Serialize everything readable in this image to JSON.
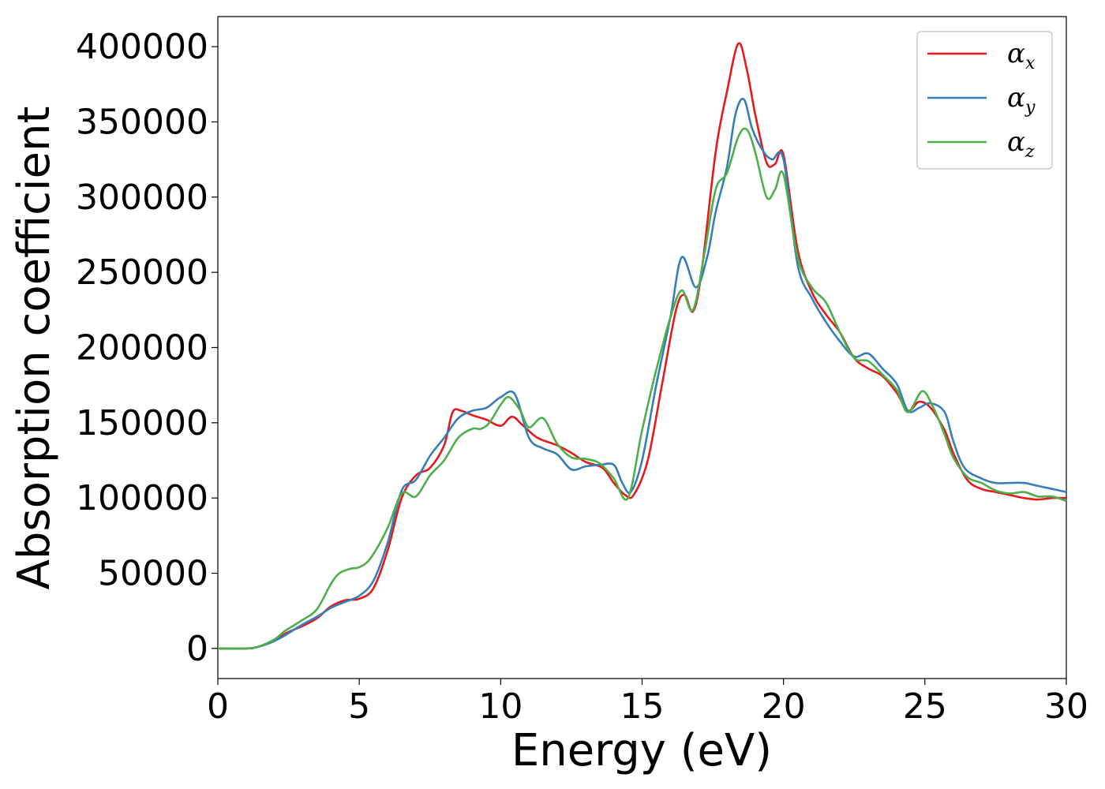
{
  "chart_data": {
    "type": "line",
    "title": "",
    "xlabel": "Energy (eV)",
    "ylabel": "Absorption coefficient",
    "xlim": [
      0,
      30
    ],
    "ylim": [
      -20000,
      420000
    ],
    "xticks": [
      0,
      5,
      10,
      15,
      20,
      25,
      30
    ],
    "yticks": [
      0,
      50000,
      100000,
      150000,
      200000,
      250000,
      300000,
      350000,
      400000
    ],
    "grid": false,
    "legend_position": "top-right",
    "series": [
      {
        "name": "α_x",
        "symbol": "α",
        "subscript": "x",
        "color": "#e41a1c",
        "points": [
          [
            0,
            0
          ],
          [
            1,
            0
          ],
          [
            1.4,
            1000
          ],
          [
            2,
            5000
          ],
          [
            2.4,
            10000
          ],
          [
            3,
            15000
          ],
          [
            3.5,
            20000
          ],
          [
            4,
            28000
          ],
          [
            4.5,
            32000
          ],
          [
            5,
            33000
          ],
          [
            5.5,
            40000
          ],
          [
            6,
            65000
          ],
          [
            6.5,
            100000
          ],
          [
            7,
            115000
          ],
          [
            7.5,
            120000
          ],
          [
            8,
            135000
          ],
          [
            8.3,
            157000
          ],
          [
            8.6,
            158000
          ],
          [
            9,
            155000
          ],
          [
            9.5,
            152000
          ],
          [
            10,
            148000
          ],
          [
            10.4,
            154000
          ],
          [
            10.8,
            148000
          ],
          [
            11.3,
            140000
          ],
          [
            12,
            135000
          ],
          [
            12.5,
            130000
          ],
          [
            13,
            124000
          ],
          [
            13.6,
            120000
          ],
          [
            14,
            110000
          ],
          [
            14.4,
            102000
          ],
          [
            14.7,
            102000
          ],
          [
            15.2,
            125000
          ],
          [
            15.7,
            175000
          ],
          [
            16.2,
            225000
          ],
          [
            16.5,
            235000
          ],
          [
            16.8,
            224000
          ],
          [
            17.1,
            250000
          ],
          [
            17.6,
            330000
          ],
          [
            18,
            370000
          ],
          [
            18.4,
            402000
          ],
          [
            18.7,
            385000
          ],
          [
            19,
            355000
          ],
          [
            19.4,
            323000
          ],
          [
            19.7,
            322000
          ],
          [
            20,
            328000
          ],
          [
            20.5,
            265000
          ],
          [
            21,
            237000
          ],
          [
            21.5,
            222000
          ],
          [
            22,
            210000
          ],
          [
            22.5,
            193000
          ],
          [
            23,
            186000
          ],
          [
            23.5,
            181000
          ],
          [
            24,
            170000
          ],
          [
            24.4,
            158000
          ],
          [
            24.8,
            164000
          ],
          [
            25.2,
            160000
          ],
          [
            25.7,
            145000
          ],
          [
            26,
            130000
          ],
          [
            26.5,
            112000
          ],
          [
            27,
            106000
          ],
          [
            27.5,
            104000
          ],
          [
            28,
            102000
          ],
          [
            28.5,
            100000
          ],
          [
            29,
            99000
          ],
          [
            29.5,
            100000
          ],
          [
            30,
            100000
          ]
        ]
      },
      {
        "name": "α_y",
        "symbol": "α",
        "subscript": "y",
        "color": "#377eb8",
        "points": [
          [
            0,
            0
          ],
          [
            1,
            0
          ],
          [
            1.4,
            1000
          ],
          [
            2,
            5000
          ],
          [
            2.4,
            9000
          ],
          [
            3,
            16000
          ],
          [
            3.5,
            21000
          ],
          [
            4,
            27000
          ],
          [
            4.5,
            31000
          ],
          [
            5,
            35000
          ],
          [
            5.5,
            45000
          ],
          [
            6,
            70000
          ],
          [
            6.5,
            105000
          ],
          [
            7,
            112000
          ],
          [
            7.5,
            128000
          ],
          [
            8,
            140000
          ],
          [
            8.5,
            153000
          ],
          [
            9,
            158000
          ],
          [
            9.5,
            160000
          ],
          [
            10,
            167000
          ],
          [
            10.5,
            169000
          ],
          [
            11,
            140000
          ],
          [
            11.5,
            133000
          ],
          [
            12,
            129000
          ],
          [
            12.5,
            119000
          ],
          [
            13,
            121000
          ],
          [
            13.5,
            122000
          ],
          [
            14,
            122000
          ],
          [
            14.3,
            110000
          ],
          [
            14.6,
            104000
          ],
          [
            15,
            125000
          ],
          [
            15.5,
            175000
          ],
          [
            16,
            220000
          ],
          [
            16.4,
            260000
          ],
          [
            16.9,
            240000
          ],
          [
            17.3,
            260000
          ],
          [
            17.6,
            290000
          ],
          [
            18,
            320000
          ],
          [
            18.3,
            355000
          ],
          [
            18.6,
            365000
          ],
          [
            18.9,
            345000
          ],
          [
            19.3,
            330000
          ],
          [
            19.6,
            325000
          ],
          [
            20,
            325000
          ],
          [
            20.5,
            255000
          ],
          [
            21,
            233000
          ],
          [
            21.5,
            217000
          ],
          [
            22,
            204000
          ],
          [
            22.5,
            194000
          ],
          [
            23,
            196000
          ],
          [
            23.5,
            186000
          ],
          [
            24,
            176000
          ],
          [
            24.4,
            158000
          ],
          [
            24.8,
            160000
          ],
          [
            25.2,
            163000
          ],
          [
            25.7,
            157000
          ],
          [
            26,
            138000
          ],
          [
            26.4,
            120000
          ],
          [
            27,
            113000
          ],
          [
            27.5,
            110000
          ],
          [
            28,
            110000
          ],
          [
            28.5,
            110000
          ],
          [
            29,
            108000
          ],
          [
            29.5,
            106000
          ],
          [
            30,
            104000
          ]
        ]
      },
      {
        "name": "α_z",
        "symbol": "α",
        "subscript": "z",
        "color": "#4daf4a",
        "points": [
          [
            0,
            0
          ],
          [
            1,
            0
          ],
          [
            1.4,
            1000
          ],
          [
            2,
            6000
          ],
          [
            2.4,
            12000
          ],
          [
            3,
            19000
          ],
          [
            3.5,
            26000
          ],
          [
            4,
            43000
          ],
          [
            4.3,
            50000
          ],
          [
            4.7,
            53000
          ],
          [
            5,
            54000
          ],
          [
            5.4,
            60000
          ],
          [
            6,
            80000
          ],
          [
            6.5,
            103000
          ],
          [
            7,
            101000
          ],
          [
            7.5,
            115000
          ],
          [
            8,
            125000
          ],
          [
            8.5,
            140000
          ],
          [
            9,
            146000
          ],
          [
            9.3,
            146000
          ],
          [
            9.6,
            150000
          ],
          [
            10,
            162000
          ],
          [
            10.3,
            167000
          ],
          [
            10.7,
            158000
          ],
          [
            11,
            147000
          ],
          [
            11.5,
            153000
          ],
          [
            12,
            136000
          ],
          [
            12.5,
            127000
          ],
          [
            13,
            126000
          ],
          [
            13.5,
            123000
          ],
          [
            14,
            113000
          ],
          [
            14.5,
            100000
          ],
          [
            15,
            145000
          ],
          [
            15.5,
            185000
          ],
          [
            16,
            220000
          ],
          [
            16.4,
            238000
          ],
          [
            16.8,
            225000
          ],
          [
            17.2,
            262000
          ],
          [
            17.6,
            305000
          ],
          [
            18,
            316000
          ],
          [
            18.4,
            340000
          ],
          [
            18.7,
            345000
          ],
          [
            19,
            330000
          ],
          [
            19.4,
            300000
          ],
          [
            19.7,
            305000
          ],
          [
            20,
            315000
          ],
          [
            20.5,
            260000
          ],
          [
            21,
            240000
          ],
          [
            21.5,
            230000
          ],
          [
            22,
            210000
          ],
          [
            22.5,
            193000
          ],
          [
            23,
            191000
          ],
          [
            23.5,
            182000
          ],
          [
            24,
            172000
          ],
          [
            24.4,
            157000
          ],
          [
            24.9,
            171000
          ],
          [
            25.3,
            160000
          ],
          [
            25.7,
            142000
          ],
          [
            26,
            127000
          ],
          [
            26.5,
            114000
          ],
          [
            27,
            110000
          ],
          [
            27.5,
            105000
          ],
          [
            28,
            103000
          ],
          [
            28.5,
            104000
          ],
          [
            29,
            101000
          ],
          [
            29.5,
            101000
          ],
          [
            30,
            98000
          ]
        ]
      }
    ]
  }
}
